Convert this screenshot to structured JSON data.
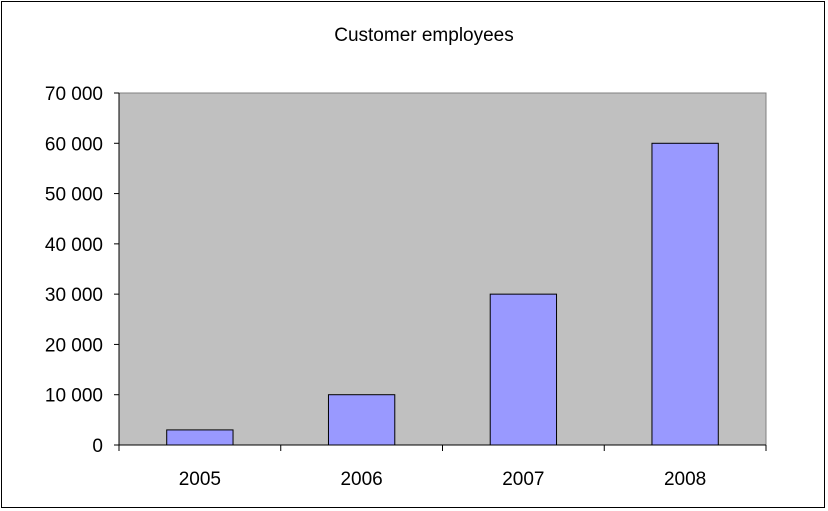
{
  "chart_data": {
    "type": "bar",
    "title": "Customer employees",
    "xlabel": "",
    "ylabel": "",
    "categories": [
      "2005",
      "2006",
      "2007",
      "2008"
    ],
    "values": [
      3000,
      10000,
      30000,
      60000
    ],
    "ylim": [
      0,
      70000
    ],
    "yticks": [
      "0",
      "10 000",
      "20 000",
      "30 000",
      "40 000",
      "50 000",
      "60 000",
      "70 000"
    ],
    "grid": false,
    "legend": "none",
    "colors": {
      "bar_fill": "#9999ff",
      "bar_stroke": "#000000",
      "plot_background": "#c0c0c0"
    }
  }
}
